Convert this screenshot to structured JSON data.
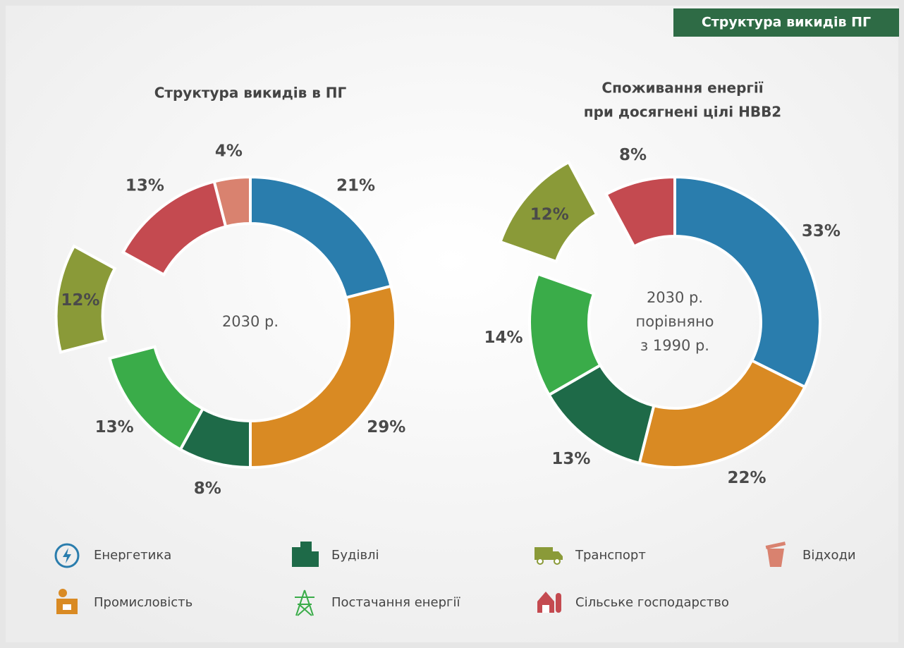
{
  "header": "Структура викидів ПГ",
  "chart_data": [
    {
      "type": "donut",
      "title": [
        "Структура викидів в ПГ"
      ],
      "center_label": [
        "2030 р."
      ],
      "values": [
        21,
        29,
        8,
        13,
        12,
        13,
        4
      ],
      "value_labels": [
        "21%",
        "29%",
        "8%",
        "13%",
        "12%",
        "13%",
        "4%"
      ],
      "colors": [
        "#2a7dad",
        "#d98a23",
        "#1e6a48",
        "#3aac49",
        "#8a9a38",
        "#c44a50",
        "#d9826f"
      ],
      "exploded": 4
    },
    {
      "type": "donut",
      "title": [
        "Споживання енергії",
        "при досягнені цілі НВВ2"
      ],
      "center_label": [
        "2030 р.",
        "порівняно",
        "з 1990 р."
      ],
      "values": [
        33,
        22,
        13,
        14,
        12,
        8
      ],
      "value_labels": [
        "33%",
        "22%",
        "13%",
        "14%",
        "12%",
        "8%"
      ],
      "colors": [
        "#2a7dad",
        "#d98a23",
        "#1e6a48",
        "#3aac49",
        "#8a9a38",
        "#c44a50"
      ],
      "exploded": 4
    }
  ],
  "legend": [
    {
      "name": "Енергетика",
      "color": "#2a7dad"
    },
    {
      "name": "Будівлі",
      "color": "#1e6a48"
    },
    {
      "name": "Транспорт",
      "color": "#8a9a38"
    },
    {
      "name": "Відходи",
      "color": "#d9826f"
    },
    {
      "name": "Промисловість",
      "color": "#d98a23"
    },
    {
      "name": "Постачання енергії",
      "color": "#3aac49"
    },
    {
      "name": "Сільське господарство",
      "color": "#c44a50"
    }
  ]
}
